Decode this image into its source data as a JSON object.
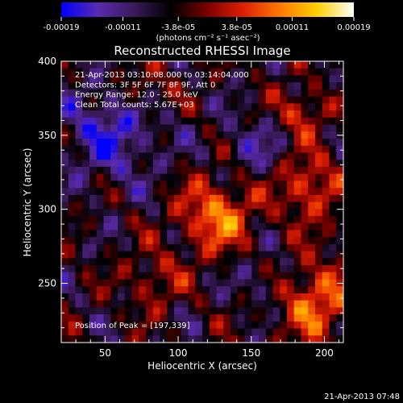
{
  "chart_data": {
    "type": "heatmap",
    "title": "Reconstructed RHESSI Image",
    "xlabel": "Heliocentric X (arcsec)",
    "ylabel": "Heliocentric Y (arcsec)",
    "xlim": [
      20,
      213
    ],
    "ylim": [
      210,
      400
    ],
    "x_ticks": [
      "50",
      "100",
      "150",
      "200"
    ],
    "x_tick_values": [
      50,
      100,
      150,
      200
    ],
    "y_ticks": [
      "250",
      "300",
      "350",
      "400"
    ],
    "y_tick_values": [
      250,
      300,
      350,
      400
    ],
    "colorbar": {
      "tick_labels": [
        "-0.00019",
        "-0.00011",
        "-3.8e-05",
        "3.8e-05",
        "0.00011",
        "0.00019"
      ],
      "tick_values": [
        -0.00019,
        -0.00011,
        -3.8e-05,
        3.8e-05,
        0.00011,
        0.00019
      ],
      "range": [
        -0.00019,
        0.00019
      ],
      "unit_label": "(photons cm⁻² s⁻¹ asec⁻²)",
      "colormap": [
        "#0000ff",
        "#5a2ab0",
        "#3a1a5a",
        "#000000",
        "#7a0000",
        "#e02000",
        "#ff7a00",
        "#ffd000",
        "#ffffff"
      ]
    },
    "annotations": [
      "21-Apr-2013 03:10:08.000 to 03:14:04.000",
      "Detectors: 3F 5F 6F 7F 8F 9F, Att 0",
      "Energy Range: 12.0 - 25.0 keV",
      "Clean      Total counts: 5.67E+03"
    ],
    "peak_label": "Position of Peak = [197,339]",
    "peak_position": [
      197,
      339
    ],
    "timestamp": "21-Apr-2013 07:48"
  }
}
